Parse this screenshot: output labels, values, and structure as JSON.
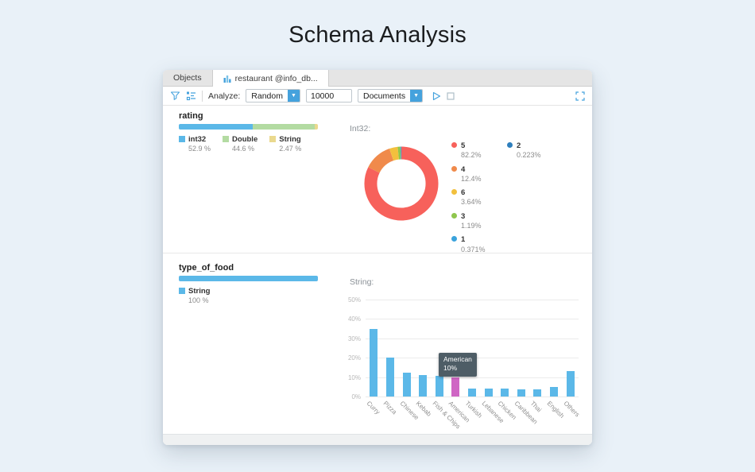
{
  "page": {
    "title": "Schema Analysis"
  },
  "tabs": [
    {
      "label": "Objects"
    },
    {
      "label": "restaurant @info_db...",
      "icon": "bar-chart-icon"
    }
  ],
  "toolbar": {
    "analyze_label": "Analyze:",
    "mode_value": "Random",
    "sample_size": "10000",
    "unit_value": "Documents"
  },
  "colors": {
    "accent_blue": "#45a2dd",
    "bar_blue": "#5bb8e8",
    "bar_highlight": "#cf66c4"
  },
  "fields": [
    {
      "name": "rating",
      "detail_title": "Int32:",
      "types": [
        {
          "label": "int32",
          "pct_label": "52.9 %",
          "value": 52.9,
          "color": "#5bb8e8"
        },
        {
          "label": "Double",
          "pct_label": "44.6 %",
          "value": 44.6,
          "color": "#b3dba2"
        },
        {
          "label": "String",
          "pct_label": "2.47 %",
          "value": 2.47,
          "color": "#ead98e"
        }
      ],
      "chart_data": {
        "type": "donut",
        "slices": [
          {
            "label": "5",
            "pct_label": "82.2%",
            "value": 82.2,
            "color": "#f7615b"
          },
          {
            "label": "4",
            "pct_label": "12.4%",
            "value": 12.4,
            "color": "#f08a4b"
          },
          {
            "label": "6",
            "pct_label": "3.64%",
            "value": 3.64,
            "color": "#f2c03d"
          },
          {
            "label": "3",
            "pct_label": "1.19%",
            "value": 1.19,
            "color": "#8fc64d"
          },
          {
            "label": "1",
            "pct_label": "0.371%",
            "value": 0.371,
            "color": "#3ba3dc"
          },
          {
            "label": "2",
            "pct_label": "0.223%",
            "value": 0.223,
            "color": "#2e7fbd"
          }
        ],
        "legend_columns": [
          [
            "5",
            "4",
            "6",
            "3",
            "1"
          ],
          [
            "2"
          ]
        ]
      }
    },
    {
      "name": "type_of_food",
      "detail_title": "String:",
      "types": [
        {
          "label": "String",
          "pct_label": "100 %",
          "value": 100,
          "color": "#5bb8e8"
        }
      ],
      "chart_data": {
        "type": "bar",
        "categories": [
          "Curry",
          "Pizza",
          "Chinese",
          "Kebab",
          "Fish & Chips",
          "American",
          "Turkish",
          "Lebanese",
          "Chicken",
          "Caribbean",
          "Thai",
          "English",
          "Others"
        ],
        "values": [
          35,
          20,
          12.5,
          11,
          10.5,
          10,
          4,
          4,
          4,
          3.5,
          3.5,
          5,
          13
        ],
        "highlight_index": 5,
        "y_ticks": [
          "0%",
          "10%",
          "20%",
          "30%",
          "40%",
          "50%"
        ],
        "y_max": 50,
        "tooltip": {
          "label": "American",
          "value": "10%"
        }
      }
    }
  ]
}
